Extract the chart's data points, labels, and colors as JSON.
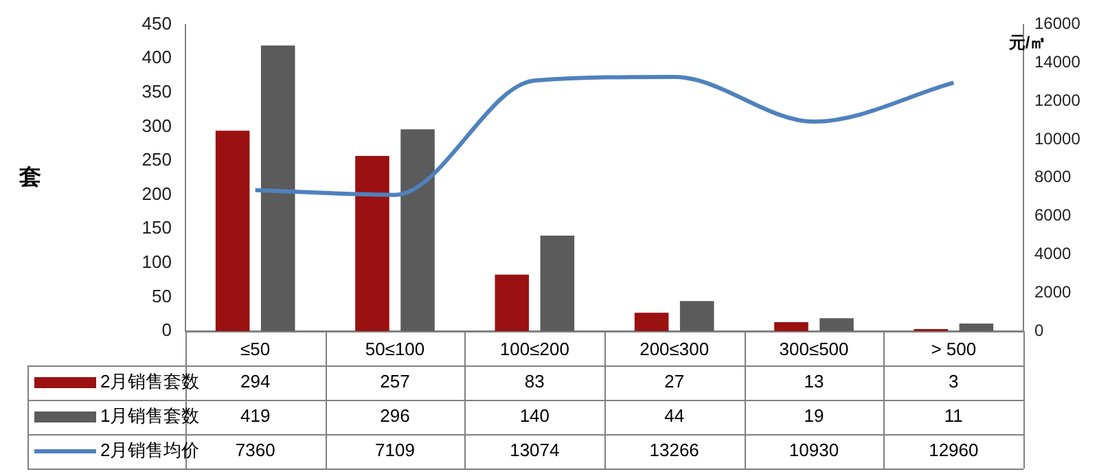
{
  "chart_data": {
    "type": "bar",
    "ylabel": "套",
    "y2label": "元/㎡",
    "categories": [
      "≤50",
      "50≤100",
      "100≤200",
      "200≤300",
      "300≤500",
      "> 500"
    ],
    "series": [
      {
        "name": "2月销售套数",
        "color": "#9b1111",
        "values": [
          294,
          257,
          83,
          27,
          13,
          3
        ]
      },
      {
        "name": "1月销售套数",
        "color": "#5b5b5b",
        "values": [
          419,
          296,
          140,
          44,
          19,
          11
        ]
      },
      {
        "name": "2月销售均价",
        "color": "#4f81bd",
        "type": "line",
        "axis": "y2",
        "values": [
          7360,
          7109,
          13074,
          13266,
          10930,
          12960
        ]
      }
    ],
    "ylim": [
      0,
      450
    ],
    "yticks": [
      0,
      50,
      100,
      150,
      200,
      250,
      300,
      350,
      400,
      450
    ],
    "y2lim": [
      0,
      16000
    ],
    "y2ticks": [
      0,
      2000,
      4000,
      6000,
      8000,
      10000,
      12000,
      14000,
      16000
    ],
    "data_labels": true,
    "legend": "bottom",
    "grid": false,
    "marker": "none"
  }
}
